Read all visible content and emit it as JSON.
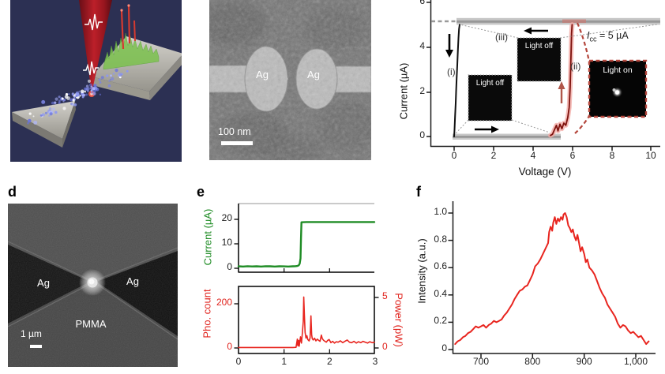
{
  "figure": {
    "panel_labels": {
      "d": "d",
      "e": "e",
      "f": "f"
    }
  },
  "panel_b": {
    "electrode_left": "Ag",
    "electrode_right": "Ag",
    "scalebar_label": "100 nm"
  },
  "panel_c": {
    "ylabel": "Current (µA)",
    "xlabel": "Voltage (V)",
    "ytick_labels": [
      "6",
      "4",
      "2",
      "0"
    ],
    "xtick_labels": [
      "0",
      "2",
      "4",
      "6",
      "8",
      "10"
    ],
    "compliance": {
      "var": "I",
      "sub": "cc",
      "rest": " = 5 µA"
    },
    "marker_i": "(i)",
    "marker_ii": "(ii)",
    "marker_iii": "(iii)",
    "inset_i_label": "Light off",
    "inset_iii_label": "Light off",
    "inset_ii_label": "Light on"
  },
  "panel_d": {
    "electrode_left": "Ag",
    "electrode_right": "Ag",
    "substrate_label": "PMMA",
    "scalebar_label": "1 µm"
  },
  "panel_e": {
    "top_ylabel": "Current (µA)",
    "top_ytick_labels": [
      "20",
      "10",
      "0"
    ],
    "bottom_ylabel_left": "Pho. count",
    "bottom_ytick_labels_left": [
      "200",
      "0"
    ],
    "bottom_ylabel_right": "Power (pW)",
    "bottom_ytick_labels_right": [
      "5",
      "0"
    ],
    "xtick_labels": [
      "0",
      "1",
      "2",
      "3"
    ]
  },
  "panel_f": {
    "ylabel": "Intensity (a.u.)",
    "ytick_labels": [
      "1.0",
      "0.8",
      "0.6",
      "0.4",
      "0.2",
      "0"
    ],
    "xtick_labels": [
      "700",
      "800",
      "900",
      "1,000"
    ]
  },
  "colors": {
    "iv_black": "#111111",
    "iv_red": "#7e120d",
    "iv_red_halo": "#f2aba6",
    "compliance_band": "#c7c7c7",
    "compliance_core": "#989898",
    "inset_red_border": "#b4463c",
    "arrow_red": "#b0564a",
    "green_trace": "#1f8c25",
    "red_trace": "#e8251f",
    "panel_a_bg": "#2c3053",
    "cone_red": "#b01820"
  },
  "chart_data": [
    {
      "id": "iv",
      "type": "line",
      "title": "",
      "xlabel": "Voltage (V)",
      "ylabel": "Current (µA)",
      "xlim": [
        0,
        10
      ],
      "ylim": [
        0,
        6
      ],
      "xticks": [
        0,
        2,
        4,
        6,
        8,
        10
      ],
      "yticks": [
        0,
        2,
        4,
        6
      ],
      "compliance_current_uA": 5,
      "annotations": [
        "Icc = 5 µA",
        "(i) Light off",
        "(iii) Light off",
        "(ii) Light on"
      ],
      "series": [
        {
          "name": "forming-sweep-black",
          "color": "#111111",
          "width": 2,
          "points": [
            [
              0,
              0
            ],
            [
              0.02,
              0.3
            ],
            [
              0.05,
              0.9
            ],
            [
              0.08,
              1.5
            ],
            [
              0.1,
              2.0
            ],
            [
              0.13,
              2.6
            ],
            [
              0.16,
              3.2
            ],
            [
              0.19,
              3.8
            ],
            [
              0.22,
              4.4
            ],
            [
              0.25,
              4.8
            ],
            [
              0.28,
              5.0
            ]
          ]
        },
        {
          "name": "light-on-transition-red",
          "color": "#7e120d",
          "width": 1.8,
          "halo": "#f2aba6",
          "halo_width": 6,
          "points": [
            [
              4.9,
              0.05
            ],
            [
              5.0,
              0.1
            ],
            [
              5.1,
              0.3
            ],
            [
              5.2,
              0.5
            ],
            [
              5.28,
              0.25
            ],
            [
              5.38,
              0.55
            ],
            [
              5.48,
              0.35
            ],
            [
              5.58,
              0.6
            ],
            [
              5.68,
              0.5
            ],
            [
              5.78,
              0.85
            ],
            [
              5.85,
              1.3
            ],
            [
              5.9,
              2.2
            ],
            [
              5.94,
              3.5
            ],
            [
              5.97,
              4.6
            ],
            [
              6.0,
              5.0
            ]
          ]
        }
      ]
    },
    {
      "id": "et",
      "type": "line",
      "title": "",
      "ylabel": "Current (µA)",
      "xlim": [
        0,
        3
      ],
      "ylim": [
        0,
        25
      ],
      "xticks": [
        0,
        1,
        2,
        3
      ],
      "yticks": [
        0,
        10,
        20
      ],
      "series": [
        {
          "name": "device-current",
          "color": "#1f8c25",
          "width": 2.4,
          "points": [
            [
              0,
              0.8
            ],
            [
              0.1,
              0.7
            ],
            [
              0.2,
              0.85
            ],
            [
              0.3,
              0.75
            ],
            [
              0.4,
              0.8
            ],
            [
              0.5,
              0.7
            ],
            [
              0.6,
              0.85
            ],
            [
              0.7,
              0.8
            ],
            [
              0.8,
              0.72
            ],
            [
              0.9,
              0.82
            ],
            [
              1.0,
              0.78
            ],
            [
              1.1,
              0.72
            ],
            [
              1.2,
              0.8
            ],
            [
              1.25,
              0.85
            ],
            [
              1.3,
              0.95
            ],
            [
              1.33,
              1.2
            ],
            [
              1.35,
              1.8
            ],
            [
              1.37,
              4
            ],
            [
              1.38,
              12
            ],
            [
              1.39,
              18.8
            ],
            [
              1.5,
              18.9
            ],
            [
              1.8,
              18.9
            ],
            [
              2.1,
              18.9
            ],
            [
              2.4,
              18.9
            ],
            [
              2.7,
              18.9
            ],
            [
              3.0,
              18.9
            ]
          ]
        }
      ]
    },
    {
      "id": "eb",
      "type": "line",
      "title": "",
      "ylabel_left": "Pho. count",
      "ylabel_right": "Power (pW)",
      "xlim": [
        0,
        3
      ],
      "ylim_left": [
        0,
        260
      ],
      "ylim_right": [
        0,
        5.6
      ],
      "xticks": [
        0,
        1,
        2,
        3
      ],
      "yticks_left": [
        0,
        200
      ],
      "yticks_right": [
        0,
        5
      ],
      "series": [
        {
          "name": "photon-count",
          "color": "#e8251f",
          "width": 1.6,
          "points": [
            [
              0,
              2
            ],
            [
              0.15,
              2
            ],
            [
              0.3,
              2
            ],
            [
              0.45,
              2
            ],
            [
              0.6,
              2
            ],
            [
              0.75,
              2
            ],
            [
              0.9,
              2
            ],
            [
              1.0,
              2
            ],
            [
              1.1,
              2
            ],
            [
              1.2,
              2
            ],
            [
              1.27,
              3
            ],
            [
              1.3,
              40
            ],
            [
              1.31,
              10
            ],
            [
              1.33,
              34
            ],
            [
              1.34,
              8
            ],
            [
              1.37,
              50
            ],
            [
              1.39,
              22
            ],
            [
              1.41,
              65
            ],
            [
              1.43,
              120
            ],
            [
              1.44,
              230
            ],
            [
              1.455,
              150
            ],
            [
              1.47,
              70
            ],
            [
              1.49,
              45
            ],
            [
              1.51,
              55
            ],
            [
              1.53,
              38
            ],
            [
              1.56,
              32
            ],
            [
              1.58,
              45
            ],
            [
              1.6,
              145
            ],
            [
              1.615,
              60
            ],
            [
              1.63,
              42
            ],
            [
              1.65,
              36
            ],
            [
              1.68,
              44
            ],
            [
              1.71,
              32
            ],
            [
              1.74,
              40
            ],
            [
              1.77,
              34
            ],
            [
              1.8,
              30
            ],
            [
              1.83,
              58
            ],
            [
              1.85,
              42
            ],
            [
              1.88,
              34
            ],
            [
              1.91,
              30
            ],
            [
              1.94,
              26
            ],
            [
              1.97,
              34
            ],
            [
              2.0,
              38
            ],
            [
              2.04,
              24
            ],
            [
              2.08,
              30
            ],
            [
              2.12,
              22
            ],
            [
              2.16,
              28
            ],
            [
              2.2,
              26
            ],
            [
              2.25,
              32
            ],
            [
              2.3,
              24
            ],
            [
              2.35,
              30
            ],
            [
              2.4,
              36
            ],
            [
              2.45,
              26
            ],
            [
              2.5,
              24
            ],
            [
              2.55,
              30
            ],
            [
              2.6,
              22
            ],
            [
              2.65,
              28
            ],
            [
              2.7,
              24
            ],
            [
              2.75,
              30
            ],
            [
              2.8,
              26
            ],
            [
              2.85,
              22
            ],
            [
              2.9,
              28
            ],
            [
              2.95,
              24
            ],
            [
              3.0,
              26
            ]
          ]
        }
      ]
    },
    {
      "id": "sp",
      "type": "line",
      "title": "",
      "ylabel": "Intensity (a.u.)",
      "xlim": [
        645,
        1035
      ],
      "ylim": [
        0,
        1.08
      ],
      "xticks": [
        700,
        800,
        900,
        1000
      ],
      "yticks": [
        0,
        0.2,
        0.4,
        0.6,
        0.8,
        1.0
      ],
      "series": [
        {
          "name": "emission-spectrum",
          "color": "#e8251f",
          "width": 2,
          "points": [
            [
              650,
              0.04
            ],
            [
              655,
              0.06
            ],
            [
              660,
              0.07
            ],
            [
              665,
              0.09
            ],
            [
              670,
              0.1
            ],
            [
              675,
              0.12
            ],
            [
              680,
              0.13
            ],
            [
              685,
              0.15
            ],
            [
              690,
              0.17
            ],
            [
              695,
              0.16
            ],
            [
              700,
              0.17
            ],
            [
              705,
              0.18
            ],
            [
              710,
              0.16
            ],
            [
              715,
              0.18
            ],
            [
              720,
              0.19
            ],
            [
              725,
              0.21
            ],
            [
              730,
              0.2
            ],
            [
              735,
              0.21
            ],
            [
              740,
              0.22
            ],
            [
              745,
              0.25
            ],
            [
              750,
              0.27
            ],
            [
              755,
              0.3
            ],
            [
              760,
              0.33
            ],
            [
              765,
              0.37
            ],
            [
              770,
              0.4
            ],
            [
              775,
              0.43
            ],
            [
              780,
              0.44
            ],
            [
              785,
              0.46
            ],
            [
              790,
              0.47
            ],
            [
              795,
              0.51
            ],
            [
              800,
              0.55
            ],
            [
              805,
              0.61
            ],
            [
              810,
              0.63
            ],
            [
              815,
              0.66
            ],
            [
              820,
              0.7
            ],
            [
              825,
              0.74
            ],
            [
              830,
              0.78
            ],
            [
              832,
              0.86
            ],
            [
              835,
              0.9
            ],
            [
              838,
              0.87
            ],
            [
              840,
              0.93
            ],
            [
              843,
              0.97
            ],
            [
              846,
              0.92
            ],
            [
              849,
              0.96
            ],
            [
              852,
              0.94
            ],
            [
              855,
              0.97
            ],
            [
              858,
              0.95
            ],
            [
              860,
              0.99
            ],
            [
              863,
              1.0
            ],
            [
              866,
              0.97
            ],
            [
              869,
              0.91
            ],
            [
              872,
              0.89
            ],
            [
              875,
              0.86
            ],
            [
              878,
              0.88
            ],
            [
              881,
              0.83
            ],
            [
              884,
              0.8
            ],
            [
              887,
              0.84
            ],
            [
              890,
              0.78
            ],
            [
              893,
              0.72
            ],
            [
              896,
              0.75
            ],
            [
              900,
              0.7
            ],
            [
              903,
              0.64
            ],
            [
              906,
              0.66
            ],
            [
              910,
              0.6
            ],
            [
              915,
              0.58
            ],
            [
              920,
              0.55
            ],
            [
              925,
              0.5
            ],
            [
              930,
              0.45
            ],
            [
              935,
              0.41
            ],
            [
              940,
              0.38
            ],
            [
              945,
              0.33
            ],
            [
              950,
              0.3
            ],
            [
              955,
              0.27
            ],
            [
              960,
              0.24
            ],
            [
              965,
              0.19
            ],
            [
              970,
              0.16
            ],
            [
              975,
              0.18
            ],
            [
              980,
              0.17
            ],
            [
              985,
              0.14
            ],
            [
              990,
              0.12
            ],
            [
              995,
              0.13
            ],
            [
              1000,
              0.11
            ],
            [
              1005,
              0.09
            ],
            [
              1010,
              0.1
            ],
            [
              1015,
              0.07
            ],
            [
              1020,
              0.04
            ],
            [
              1025,
              0.06
            ]
          ]
        }
      ]
    }
  ]
}
